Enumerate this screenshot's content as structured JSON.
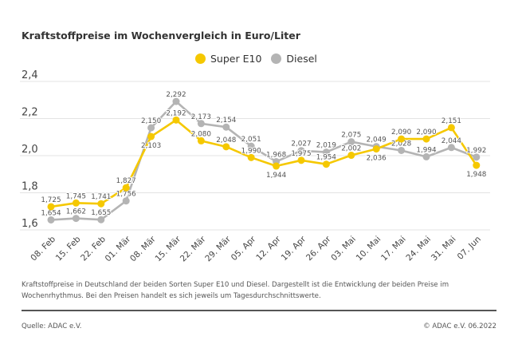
{
  "chart_data": {
    "type": "line",
    "title": "Kraftstoffpreise im Wochenvergleich in Euro/Liter",
    "categories": [
      "08. Feb",
      "15. Feb",
      "22. Feb",
      "01. Mär",
      "08. Mär",
      "15. Mär",
      "22. Mär",
      "29. Mär",
      "05. Apr",
      "12. Apr",
      "19. Apr",
      "26. Apr",
      "03. Mai",
      "10. Mai",
      "17. Mai",
      "24. Mai",
      "31. Mai",
      "07. Jun"
    ],
    "series": [
      {
        "name": "Super E10",
        "color": "#f5c800",
        "values": [
          1.725,
          1.745,
          1.741,
          1.827,
          2.103,
          2.192,
          2.08,
          2.048,
          1.99,
          1.944,
          1.975,
          1.954,
          2.002,
          2.036,
          2.09,
          2.09,
          2.151,
          1.948
        ],
        "labels": [
          "1,725",
          "1,745",
          "1,741",
          "1,827",
          "2,103",
          "2,192",
          "2,080",
          "2,048",
          "1,990",
          "1,944",
          "1,975",
          "1,954",
          "2,002",
          "2,036",
          "2,090",
          "2,090",
          "2,151",
          "1,948"
        ]
      },
      {
        "name": "Diesel",
        "color": "#b4b4b4",
        "values": [
          1.654,
          1.662,
          1.655,
          1.756,
          2.15,
          2.292,
          2.173,
          2.154,
          2.051,
          1.968,
          2.027,
          2.019,
          2.075,
          2.049,
          2.028,
          1.994,
          2.044,
          1.992
        ],
        "labels": [
          "1,654",
          "1,662",
          "1,655",
          "1,756",
          "2,150",
          "2,292",
          "2,173",
          "2,154",
          "2,051",
          "1,968",
          "2,027",
          "2,019",
          "2,075",
          "2,049",
          "2,028",
          "1,994",
          "2,044",
          "1,992"
        ]
      }
    ],
    "yticks": [
      1.6,
      1.8,
      2.0,
      2.2,
      2.4
    ],
    "ytick_labels": [
      "1,6",
      "1,8",
      "2,0",
      "2,2",
      "2,4"
    ],
    "ylim": [
      1.6,
      2.4
    ],
    "grid": true,
    "legend": "top-center"
  },
  "note": "Kraftstoffpreise in Deutschland der beiden Sorten Super E10 und Diesel. Dargestellt ist die Entwicklung der beiden Preise im Wochenrhythmus. Bei den Preisen handelt es sich jeweils um Tagesdurchschnittswerte.",
  "source": "Quelle: ADAC e.V.",
  "copyright": "© ADAC e.V. 06.2022"
}
